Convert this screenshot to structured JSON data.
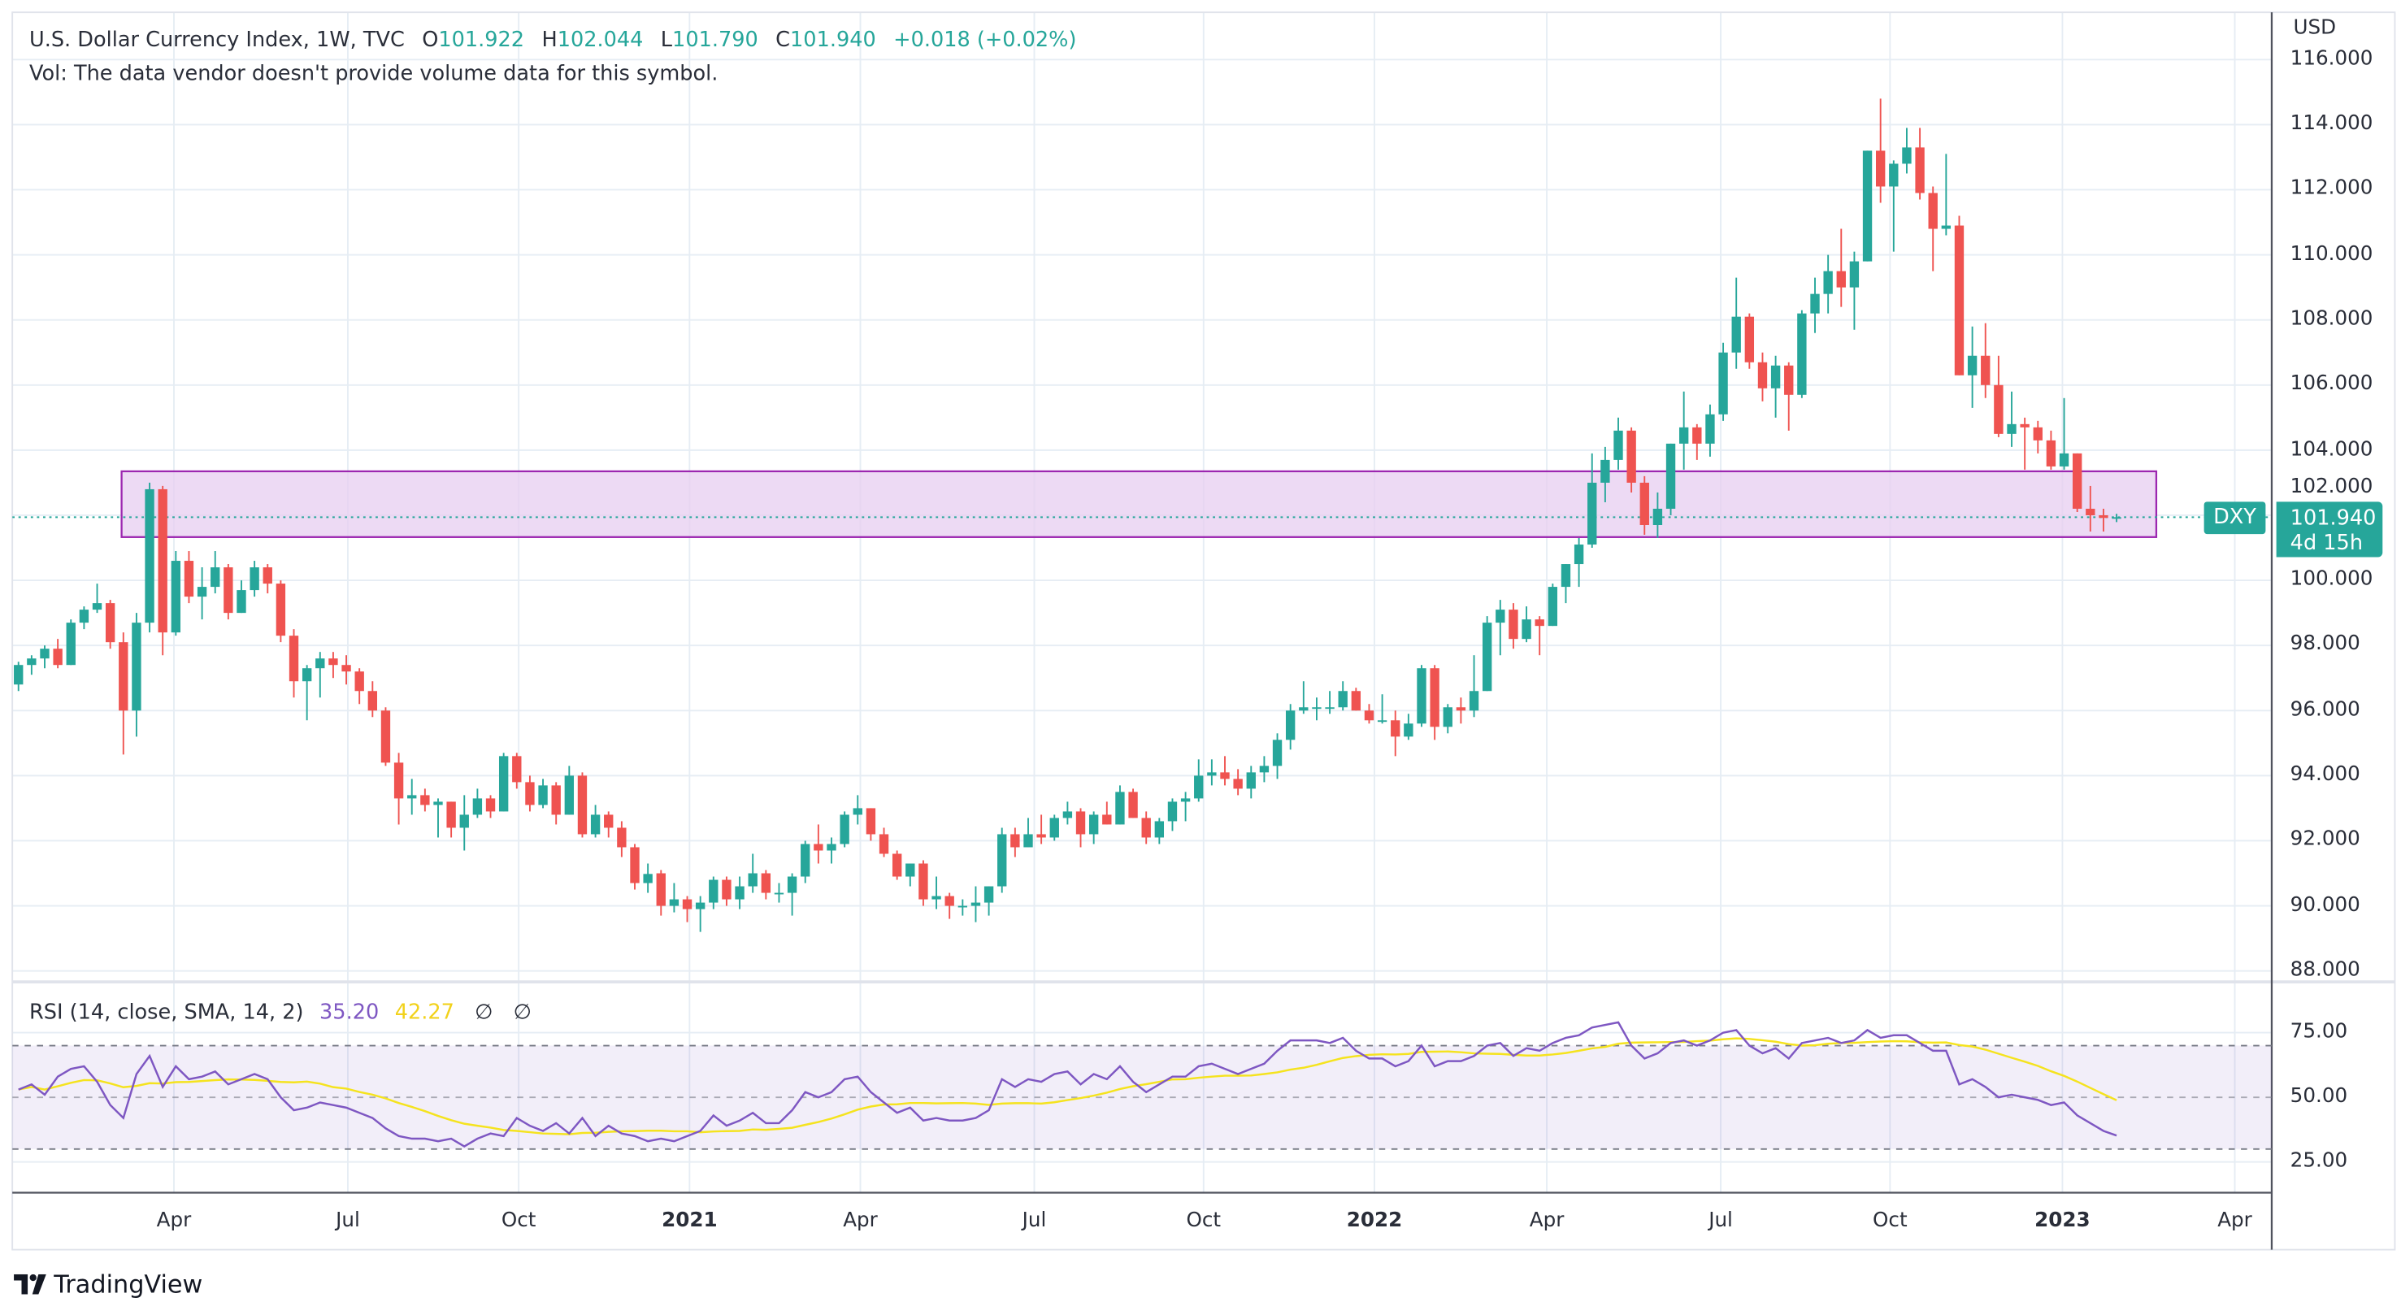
{
  "header": {
    "symbol": "U.S. Dollar Currency Index, 1W, TVC",
    "o_label": "O",
    "o": "101.922",
    "h_label": "H",
    "h": "102.044",
    "l_label": "L",
    "l": "101.790",
    "c_label": "C",
    "c": "101.940",
    "change": "+0.018 (+0.02%)",
    "vol_note": "Vol: The data vendor doesn't provide volume data for this symbol."
  },
  "price_axis": {
    "currency": "USD",
    "ticks": [
      "116.000",
      "114.000",
      "112.000",
      "110.000",
      "108.000",
      "106.000",
      "104.000",
      "102.000",
      "100.000",
      "98.000",
      "96.000",
      "94.000",
      "92.000",
      "90.000",
      "88.000"
    ],
    "tag": "DXY",
    "last_price": "101.940",
    "countdown": "4d 15h"
  },
  "rsi": {
    "title": "RSI (14, close, SMA, 14, 2)",
    "rsi_value": "35.20",
    "sma_value": "42.27",
    "empty1": "∅",
    "empty2": "∅",
    "ticks": [
      "75.00",
      "50.00",
      "25.00"
    ],
    "bands": [
      70,
      50,
      30
    ]
  },
  "time_axis": [
    "Apr",
    "Jul",
    "Oct",
    "2021",
    "Apr",
    "Jul",
    "Oct",
    "2022",
    "Apr",
    "Jul",
    "Oct",
    "2023",
    "Apr"
  ],
  "brand": "TradingView",
  "colors": {
    "up": "#26a69a",
    "down": "#ef5350",
    "rsi": "#7e57c2",
    "sma": "#f5e31e",
    "zone_border": "#9c27b0",
    "zone_fill": "#e7cdf0"
  },
  "chart_data": [
    {
      "type": "candlestick",
      "title": "U.S. Dollar Currency Index, 1W, TVC",
      "ylabel": "USD",
      "ylim": [
        88,
        116
      ],
      "grid": true,
      "zone": {
        "top": 103.35,
        "bottom": 101.33
      },
      "candles_ohlc": [
        [
          96.8,
          97.5,
          96.6,
          97.4
        ],
        [
          97.4,
          97.7,
          97.1,
          97.6
        ],
        [
          97.6,
          98.0,
          97.3,
          97.9
        ],
        [
          97.9,
          98.2,
          97.3,
          97.4
        ],
        [
          97.4,
          98.8,
          97.4,
          98.7
        ],
        [
          98.7,
          99.2,
          98.5,
          99.1
        ],
        [
          99.1,
          99.9,
          99.0,
          99.3
        ],
        [
          99.3,
          99.4,
          97.9,
          98.1
        ],
        [
          98.1,
          98.4,
          94.65,
          96.0
        ],
        [
          96.0,
          99.0,
          95.2,
          98.7
        ],
        [
          98.7,
          103.0,
          98.4,
          102.8
        ],
        [
          102.8,
          102.9,
          97.7,
          98.4
        ],
        [
          98.4,
          100.9,
          98.3,
          100.6
        ],
        [
          100.6,
          100.9,
          99.3,
          99.5
        ],
        [
          99.5,
          100.4,
          98.8,
          99.8
        ],
        [
          99.8,
          100.9,
          99.6,
          100.4
        ],
        [
          100.4,
          100.5,
          98.8,
          99.0
        ],
        [
          99.0,
          100.0,
          99.0,
          99.7
        ],
        [
          99.7,
          100.6,
          99.5,
          100.4
        ],
        [
          100.4,
          100.5,
          99.6,
          99.9
        ],
        [
          99.9,
          100.0,
          98.1,
          98.3
        ],
        [
          98.3,
          98.5,
          96.4,
          96.9
        ],
        [
          96.9,
          97.4,
          95.7,
          97.3
        ],
        [
          97.3,
          97.8,
          96.4,
          97.6
        ],
        [
          97.6,
          97.8,
          97.0,
          97.4
        ],
        [
          97.4,
          97.7,
          96.8,
          97.2
        ],
        [
          97.2,
          97.3,
          96.2,
          96.6
        ],
        [
          96.6,
          96.9,
          95.8,
          96.0
        ],
        [
          96.0,
          96.1,
          94.3,
          94.4
        ],
        [
          94.4,
          94.7,
          92.5,
          93.3
        ],
        [
          93.3,
          93.9,
          92.8,
          93.4
        ],
        [
          93.4,
          93.6,
          92.9,
          93.1
        ],
        [
          93.1,
          93.3,
          92.1,
          93.2
        ],
        [
          93.2,
          93.2,
          92.1,
          92.4
        ],
        [
          92.4,
          93.4,
          91.7,
          92.8
        ],
        [
          92.8,
          93.6,
          92.7,
          93.3
        ],
        [
          93.3,
          93.4,
          92.7,
          92.9
        ],
        [
          92.9,
          94.7,
          92.9,
          94.6
        ],
        [
          94.6,
          94.7,
          93.6,
          93.8
        ],
        [
          93.8,
          94.0,
          92.9,
          93.1
        ],
        [
          93.1,
          93.9,
          93.0,
          93.7
        ],
        [
          93.7,
          93.8,
          92.5,
          92.8
        ],
        [
          92.8,
          94.3,
          92.8,
          94.0
        ],
        [
          94.0,
          94.1,
          92.1,
          92.2
        ],
        [
          92.2,
          93.1,
          92.1,
          92.8
        ],
        [
          92.8,
          92.9,
          92.1,
          92.4
        ],
        [
          92.4,
          92.6,
          91.5,
          91.8
        ],
        [
          91.8,
          91.9,
          90.5,
          90.7
        ],
        [
          90.7,
          91.3,
          90.4,
          90.98
        ],
        [
          91.0,
          91.1,
          89.7,
          90.0
        ],
        [
          90.0,
          90.7,
          89.8,
          90.2
        ],
        [
          90.2,
          90.3,
          89.5,
          89.9
        ],
        [
          89.9,
          90.3,
          89.2,
          90.1
        ],
        [
          90.1,
          90.9,
          89.9,
          90.8
        ],
        [
          90.8,
          90.9,
          90.0,
          90.2
        ],
        [
          90.2,
          90.9,
          89.9,
          90.6
        ],
        [
          90.6,
          91.6,
          90.4,
          91.0
        ],
        [
          91.0,
          91.1,
          90.2,
          90.4
        ],
        [
          90.4,
          90.7,
          90.1,
          90.4
        ],
        [
          90.4,
          91.0,
          89.7,
          90.9
        ],
        [
          90.9,
          92.0,
          90.7,
          91.9
        ],
        [
          91.9,
          92.5,
          91.3,
          91.7
        ],
        [
          91.7,
          92.1,
          91.3,
          91.9
        ],
        [
          91.9,
          92.9,
          91.8,
          92.8
        ],
        [
          92.8,
          93.4,
          92.5,
          93.0
        ],
        [
          93.0,
          93.0,
          92.0,
          92.2
        ],
        [
          92.2,
          92.4,
          91.5,
          91.6
        ],
        [
          91.6,
          91.7,
          90.8,
          90.9
        ],
        [
          90.9,
          91.3,
          90.6,
          91.3
        ],
        [
          91.3,
          91.4,
          90.0,
          90.2
        ],
        [
          90.2,
          90.9,
          89.9,
          90.3
        ],
        [
          90.3,
          90.4,
          89.6,
          90.0
        ],
        [
          90.0,
          90.2,
          89.7,
          90.0
        ],
        [
          90.0,
          90.6,
          89.5,
          90.1
        ],
        [
          90.1,
          90.6,
          89.7,
          90.6
        ],
        [
          90.6,
          92.4,
          90.4,
          92.2
        ],
        [
          92.2,
          92.4,
          91.5,
          91.8
        ],
        [
          91.8,
          92.7,
          91.8,
          92.2
        ],
        [
          92.2,
          92.8,
          91.9,
          92.1
        ],
        [
          92.1,
          92.8,
          92.0,
          92.7
        ],
        [
          92.7,
          93.2,
          92.5,
          92.9
        ],
        [
          92.9,
          93.0,
          91.8,
          92.2
        ],
        [
          92.2,
          92.9,
          91.9,
          92.8
        ],
        [
          92.8,
          93.2,
          92.5,
          92.5
        ],
        [
          92.5,
          93.7,
          92.5,
          93.5
        ],
        [
          93.5,
          93.6,
          92.7,
          92.7
        ],
        [
          92.7,
          92.9,
          91.9,
          92.1
        ],
        [
          92.1,
          92.7,
          91.9,
          92.6
        ],
        [
          92.6,
          93.3,
          92.3,
          93.2
        ],
        [
          93.2,
          93.5,
          92.6,
          93.3
        ],
        [
          93.3,
          94.5,
          93.2,
          94.0
        ],
        [
          94.0,
          94.5,
          93.7,
          94.1
        ],
        [
          94.1,
          94.6,
          93.7,
          93.9
        ],
        [
          93.9,
          94.2,
          93.4,
          93.6
        ],
        [
          93.6,
          94.3,
          93.3,
          94.1
        ],
        [
          94.1,
          94.6,
          93.8,
          94.3
        ],
        [
          94.3,
          95.3,
          93.9,
          95.1
        ],
        [
          95.1,
          96.2,
          94.8,
          96.0
        ],
        [
          96.0,
          96.9,
          95.9,
          96.1
        ],
        [
          96.1,
          96.4,
          95.7,
          96.1
        ],
        [
          96.1,
          96.6,
          95.9,
          96.1
        ],
        [
          96.1,
          96.9,
          96.0,
          96.6
        ],
        [
          96.6,
          96.7,
          96.0,
          96.0
        ],
        [
          96.0,
          96.2,
          95.6,
          95.7
        ],
        [
          95.7,
          96.5,
          95.6,
          95.7
        ],
        [
          95.7,
          96.0,
          94.6,
          95.2
        ],
        [
          95.2,
          95.9,
          95.1,
          95.6
        ],
        [
          95.6,
          97.4,
          95.5,
          97.3
        ],
        [
          97.3,
          97.4,
          95.1,
          95.5
        ],
        [
          95.5,
          96.2,
          95.3,
          96.1
        ],
        [
          96.1,
          96.4,
          95.6,
          96.0
        ],
        [
          96.0,
          97.7,
          95.8,
          96.6
        ],
        [
          96.6,
          98.9,
          96.6,
          98.7
        ],
        [
          98.7,
          99.4,
          97.7,
          99.1
        ],
        [
          99.1,
          99.3,
          97.9,
          98.2
        ],
        [
          98.2,
          99.2,
          98.1,
          98.8
        ],
        [
          98.8,
          98.9,
          97.7,
          98.6
        ],
        [
          98.6,
          99.9,
          98.6,
          99.8
        ],
        [
          99.8,
          100.5,
          99.3,
          100.5
        ],
        [
          100.5,
          101.3,
          99.8,
          101.1
        ],
        [
          101.1,
          103.9,
          101.0,
          103.0
        ],
        [
          103.0,
          104.1,
          102.4,
          103.7
        ],
        [
          103.7,
          105.0,
          103.4,
          104.6
        ],
        [
          104.6,
          104.7,
          102.7,
          103.0
        ],
        [
          103.0,
          103.2,
          101.4,
          101.7
        ],
        [
          101.7,
          102.7,
          101.3,
          102.2
        ],
        [
          102.2,
          104.2,
          102.0,
          104.2
        ],
        [
          104.2,
          105.8,
          103.4,
          104.7
        ],
        [
          104.7,
          104.8,
          103.7,
          104.2
        ],
        [
          104.2,
          105.4,
          103.8,
          105.1
        ],
        [
          105.1,
          107.3,
          104.9,
          107.0
        ],
        [
          107.0,
          109.3,
          106.5,
          108.1
        ],
        [
          108.1,
          108.2,
          106.5,
          106.7
        ],
        [
          106.7,
          107.0,
          105.5,
          105.9
        ],
        [
          105.9,
          106.9,
          105.0,
          106.6
        ],
        [
          106.6,
          106.7,
          104.6,
          105.7
        ],
        [
          105.7,
          108.3,
          105.6,
          108.2
        ],
        [
          108.2,
          109.3,
          107.6,
          108.8
        ],
        [
          108.8,
          110.0,
          108.2,
          109.5
        ],
        [
          109.5,
          110.8,
          108.4,
          109.0
        ],
        [
          109.0,
          110.1,
          107.7,
          109.8
        ],
        [
          109.8,
          113.2,
          109.8,
          113.2
        ],
        [
          113.2,
          114.8,
          111.6,
          112.1
        ],
        [
          112.1,
          112.9,
          110.1,
          112.8
        ],
        [
          112.8,
          113.9,
          112.5,
          113.3
        ],
        [
          113.3,
          113.9,
          111.7,
          111.9
        ],
        [
          111.9,
          112.1,
          109.5,
          110.8
        ],
        [
          110.8,
          113.1,
          110.6,
          110.9
        ],
        [
          110.9,
          111.2,
          106.3,
          106.3
        ],
        [
          106.3,
          107.8,
          105.3,
          106.9
        ],
        [
          106.9,
          107.9,
          105.6,
          106.0
        ],
        [
          106.0,
          106.9,
          104.4,
          104.5
        ],
        [
          104.5,
          105.8,
          104.1,
          104.8
        ],
        [
          104.8,
          105.0,
          103.4,
          104.7
        ],
        [
          104.7,
          104.9,
          103.9,
          104.3
        ],
        [
          104.3,
          104.6,
          103.4,
          103.5
        ],
        [
          103.5,
          105.6,
          103.4,
          103.9
        ],
        [
          103.9,
          103.9,
          102.1,
          102.2
        ],
        [
          102.2,
          102.9,
          101.5,
          102.0
        ],
        [
          102.0,
          102.2,
          101.5,
          101.92
        ],
        [
          101.922,
          102.044,
          101.79,
          101.94
        ]
      ]
    },
    {
      "type": "line",
      "title": "RSI (14, close, SMA, 14, 2)",
      "ylim": [
        20,
        80
      ],
      "series": [
        {
          "name": "RSI",
          "values": [
            53,
            55,
            51,
            58,
            61,
            62,
            56,
            47,
            42,
            59,
            66,
            54,
            62,
            57,
            58,
            60,
            55,
            57,
            59,
            57,
            50,
            45,
            46,
            48,
            47,
            46,
            44,
            42,
            38,
            35,
            34,
            34,
            33,
            34,
            31,
            34,
            36,
            35,
            42,
            39,
            37,
            40,
            36,
            42,
            35,
            39,
            36,
            35,
            33,
            34,
            33,
            35,
            37,
            43,
            39,
            41,
            44,
            40,
            40,
            45,
            52,
            50,
            52,
            57,
            58,
            52,
            48,
            44,
            46,
            41,
            42,
            41,
            41,
            42,
            45,
            57,
            54,
            57,
            56,
            59,
            60,
            55,
            59,
            57,
            62,
            56,
            52,
            55,
            58,
            58,
            62,
            63,
            61,
            59,
            61,
            63,
            68,
            72,
            72,
            72,
            71,
            73,
            68,
            65,
            65,
            62,
            64,
            70,
            62,
            64,
            64,
            66,
            70,
            71,
            66,
            69,
            68,
            71,
            73,
            74,
            77,
            78,
            79,
            70,
            65,
            67,
            71,
            72,
            70,
            72,
            75,
            76,
            70,
            67,
            69,
            65,
            71,
            72,
            73,
            71,
            72,
            76,
            73,
            74,
            74,
            71,
            68,
            68,
            55,
            57,
            54,
            50,
            51,
            50,
            49,
            47,
            48,
            43,
            40,
            37,
            35.2
          ]
        }
      ]
    }
  ]
}
